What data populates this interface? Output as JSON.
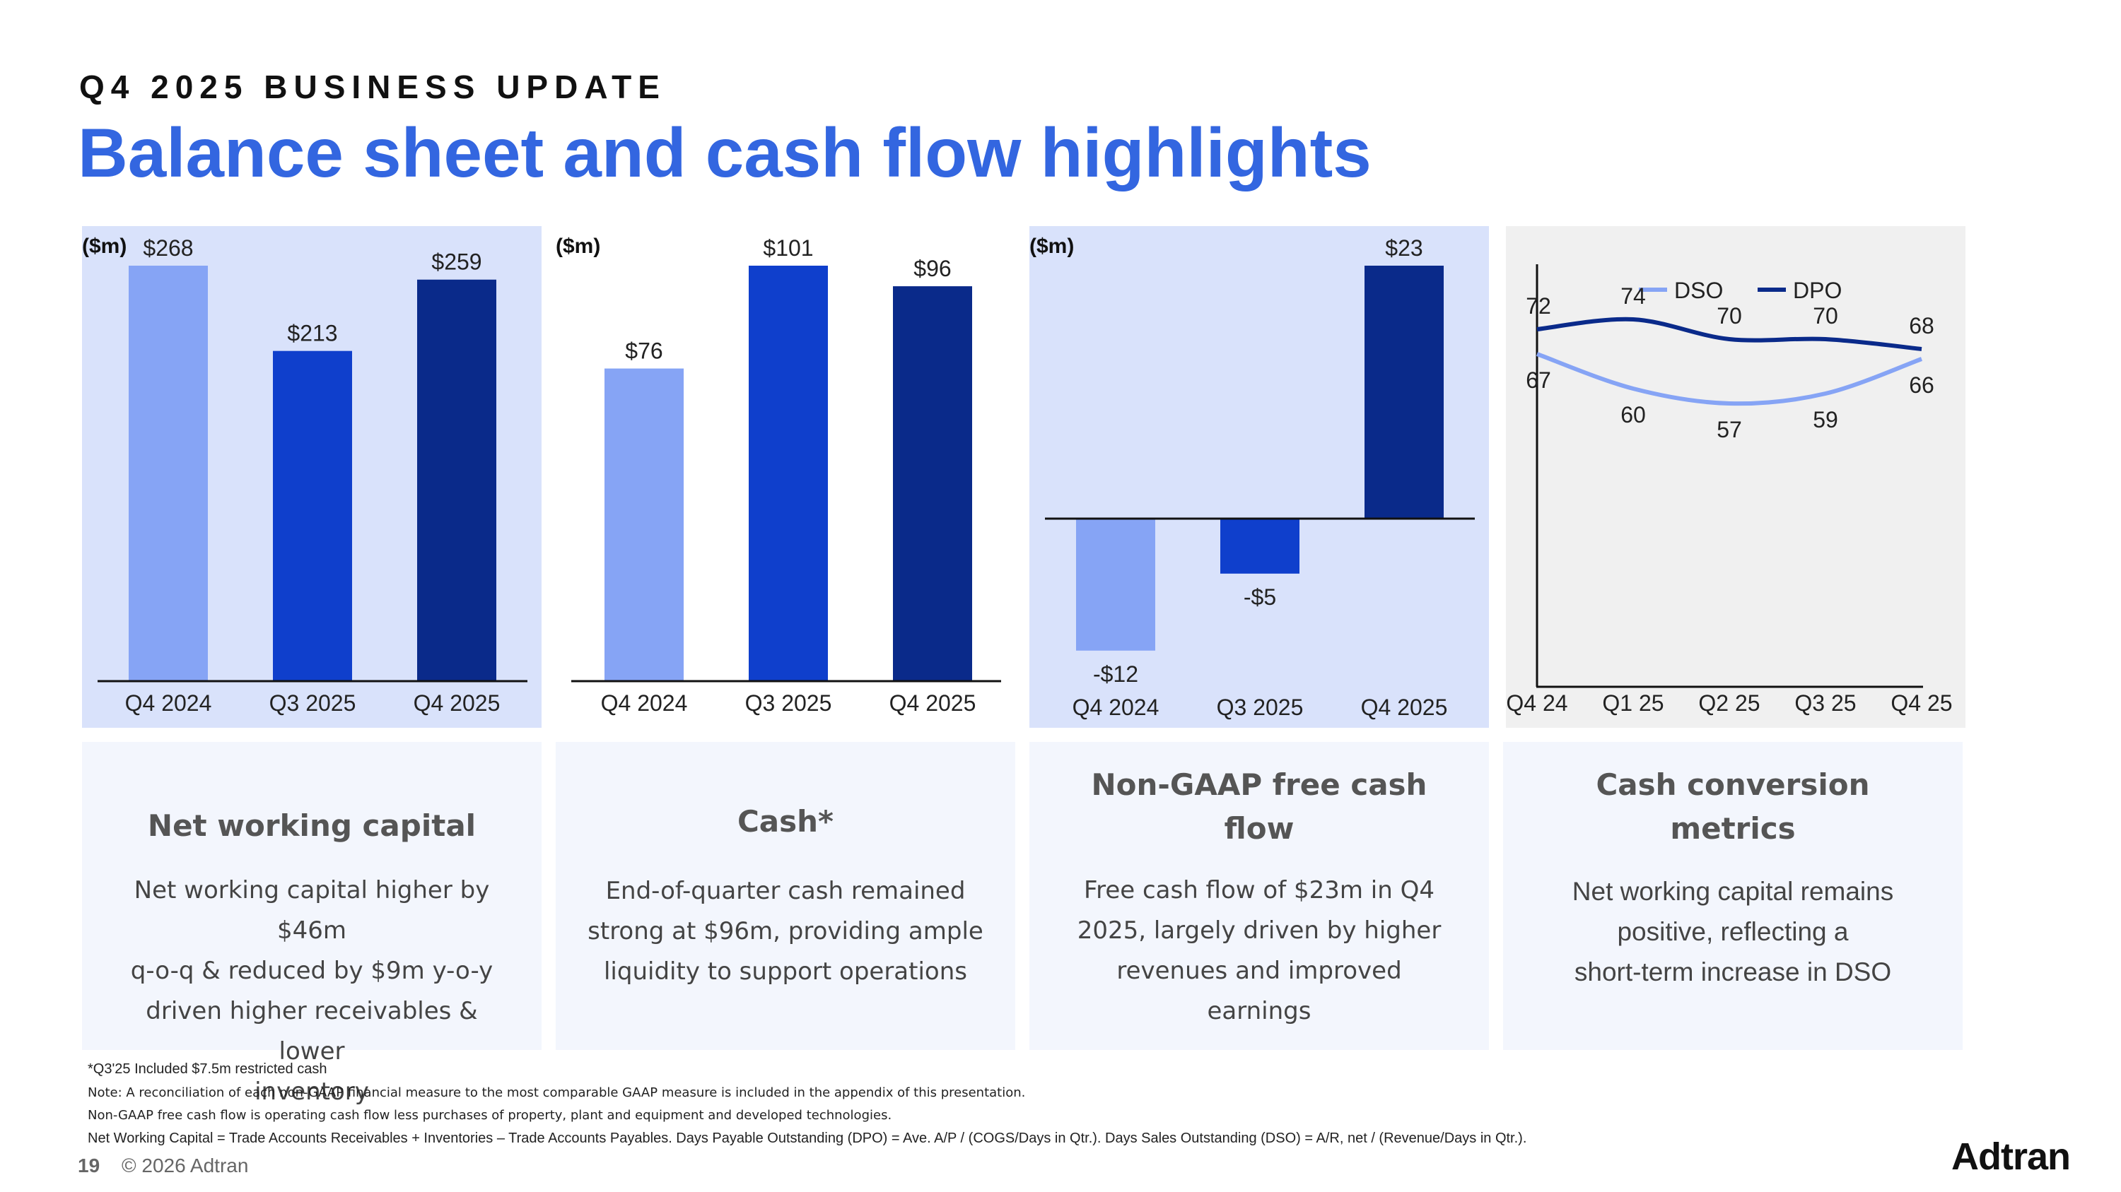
{
  "header": {
    "kicker": "Q4 2025 BUSINESS UPDATE",
    "title": "Balance sheet and cash flow highlights"
  },
  "chart_data": [
    {
      "type": "bar",
      "unit_label": "($m)",
      "categories": [
        "Q4 2024",
        "Q3 2025",
        "Q4 2025"
      ],
      "values": [
        268,
        213,
        259
      ],
      "data_labels": [
        "$268",
        "$213",
        "$259"
      ],
      "ylim": [
        0,
        268
      ],
      "colors": [
        "#86a4f5",
        "#0f3fcc",
        "#0a2a8a"
      ],
      "background": "#d9e2fb"
    },
    {
      "type": "bar",
      "unit_label": "($m)",
      "categories": [
        "Q4 2024",
        "Q3 2025",
        "Q4 2025"
      ],
      "values": [
        76,
        101,
        96
      ],
      "data_labels": [
        "$76",
        "$101",
        "$96"
      ],
      "ylim": [
        0,
        101
      ],
      "colors": [
        "#86a4f5",
        "#0f3fcc",
        "#0a2a8a"
      ],
      "background": "#ffffff"
    },
    {
      "type": "bar",
      "unit_label": "($m)",
      "categories": [
        "Q4 2024",
        "Q3 2025",
        "Q4 2025"
      ],
      "values": [
        -12,
        -5,
        23
      ],
      "data_labels": [
        "-$12",
        "-$5",
        "$23"
      ],
      "ylim": [
        -12,
        23
      ],
      "colors": [
        "#86a4f5",
        "#0f3fcc",
        "#0a2a8a"
      ],
      "background": "#d9e2fb"
    },
    {
      "type": "line",
      "categories": [
        "Q4 24",
        "Q1 25",
        "Q2 25",
        "Q3 25",
        "Q4 25"
      ],
      "series": [
        {
          "name": "DSO",
          "values": [
            67,
            60,
            57,
            59,
            66
          ],
          "color": "#86a4f5"
        },
        {
          "name": "DPO",
          "values": [
            72,
            74,
            70,
            70,
            68
          ],
          "color": "#0a2a8a"
        }
      ],
      "ylim": [
        0,
        100
      ],
      "legend": "top",
      "background": "#f0f0f0"
    }
  ],
  "cards": [
    {
      "title": "Net working capital",
      "body": [
        "Net working capital higher by $46m",
        "q-o-q & reduced by $9m  y-o-y",
        "driven higher receivables & lower",
        "inventory"
      ]
    },
    {
      "title": "Cash*",
      "body": [
        "End-of-quarter cash remained",
        "strong at $96m, providing ample",
        "liquidity to support operations"
      ]
    },
    {
      "title": [
        "Non-GAAP free cash",
        "flow"
      ],
      "body": [
        "Free cash flow of $23m in Q4",
        "2025, largely driven by higher",
        "revenues and improved",
        "earnings"
      ]
    },
    {
      "title": [
        "Cash conversion",
        "metrics"
      ],
      "body": [
        "Net working capital remains",
        "positive, reflecting a",
        "short-term increase in DSO"
      ]
    }
  ],
  "footnotes": {
    "f1": "*Q3'25 Included $7.5m restricted cash",
    "f2": "Note: A reconciliation of each non-GAAP financial measure to the most comparable GAAP measure is included in the appendix of this presentation.",
    "f3": "Non-GAAP free cash flow is operating cash flow less purchases of property, plant and equipment and developed technologies.",
    "f4": "Net Working Capital = Trade Accounts Receivables + Inventories – Trade Accounts Payables.  Days Payable Outstanding (DPO) = Ave. A/P / (COGS/Days in Qtr.). Days Sales Outstanding (DSO) =  A/R, net / (Revenue/Days in Qtr.)."
  },
  "footer": {
    "page_number": "19",
    "copyright": "© 2026 Adtran",
    "logo_text": "Adtran"
  }
}
